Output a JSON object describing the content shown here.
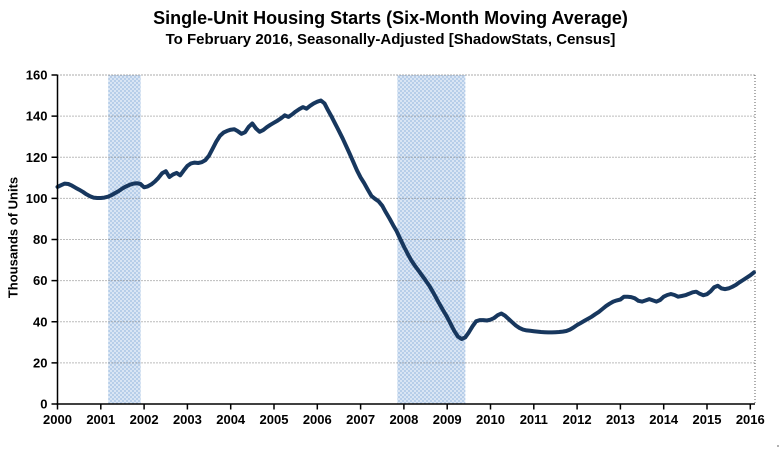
{
  "header": {
    "title": "Single-Unit Housing Starts (Six-Month Moving Average)",
    "subtitle": "To February 2016, Seasonally-Adjusted [ShadowStats, Census]"
  },
  "y_axis": {
    "label": "Thousands of Units",
    "min": 0,
    "max": 160,
    "ticks": [
      0,
      20,
      40,
      60,
      80,
      100,
      120,
      140,
      160
    ]
  },
  "x_axis": {
    "ticks": [
      2000,
      2001,
      2002,
      2003,
      2004,
      2005,
      2006,
      2007,
      2008,
      2009,
      2010,
      2011,
      2012,
      2013,
      2014,
      2015,
      2016
    ]
  },
  "colors": {
    "line": "#17375E",
    "band": "#B7CEE9",
    "grid": "#787878",
    "axis": "#000000",
    "background": "#FFFFFF"
  },
  "chart_data": {
    "type": "line",
    "title": "Single-Unit Housing Starts (Six-Month Moving Average)",
    "subtitle": "To February 2016, Seasonally-Adjusted [ShadowStats, Census]",
    "xlabel": "",
    "ylabel": "Thousands of Units",
    "ylim": [
      0,
      160
    ],
    "xlim": [
      2000,
      2016.17
    ],
    "grid": true,
    "legend_position": "none",
    "recession_bands": [
      {
        "start": 2001.17,
        "end": 2001.92
      },
      {
        "start": 2007.85,
        "end": 2009.42
      }
    ],
    "series": [
      {
        "name": "Single-Unit Housing Starts, 6-month moving average",
        "color": "#17375E",
        "start_month": "2000-01",
        "end_month": "2016-02",
        "values": [
          105.6,
          106.4,
          107.2,
          107.0,
          106.2,
          105.2,
          104.2,
          103.2,
          102.0,
          101.0,
          100.4,
          100.2,
          100.2,
          100.4,
          100.8,
          101.6,
          102.6,
          103.6,
          104.8,
          105.8,
          106.6,
          107.2,
          107.4,
          107.0,
          105.4,
          105.8,
          106.8,
          108.2,
          110.0,
          112.2,
          113.2,
          110.4,
          111.6,
          112.4,
          111.2,
          113.6,
          115.8,
          117.0,
          117.4,
          117.2,
          117.6,
          118.6,
          120.8,
          124.2,
          127.6,
          130.4,
          132.0,
          132.8,
          133.4,
          133.6,
          132.6,
          131.4,
          132.2,
          134.8,
          136.4,
          134.0,
          132.4,
          133.2,
          134.6,
          135.8,
          136.8,
          137.8,
          139.0,
          140.4,
          139.6,
          140.8,
          142.2,
          143.4,
          144.4,
          143.6,
          145.0,
          146.2,
          147.0,
          147.6,
          146.2,
          142.8,
          139.6,
          136.2,
          132.8,
          129.2,
          125.4,
          121.6,
          117.6,
          113.6,
          110.2,
          107.4,
          104.2,
          101.2,
          99.8,
          98.6,
          96.4,
          93.2,
          90.2,
          87.0,
          84.0,
          80.2,
          76.6,
          73.2,
          70.0,
          67.4,
          65.0,
          62.6,
          60.2,
          57.6,
          54.6,
          51.4,
          48.2,
          45.2,
          42.2,
          38.8,
          35.4,
          32.8,
          31.6,
          32.4,
          34.8,
          37.8,
          40.2,
          40.8,
          40.8,
          40.6,
          41.0,
          41.8,
          43.2,
          44.0,
          43.0,
          41.4,
          39.8,
          38.2,
          37.0,
          36.2,
          35.8,
          35.6,
          35.4,
          35.2,
          35.0,
          34.9,
          34.8,
          34.8,
          34.9,
          35.0,
          35.2,
          35.5,
          36.2,
          37.2,
          38.4,
          39.4,
          40.4,
          41.4,
          42.4,
          43.6,
          44.8,
          46.2,
          47.6,
          48.8,
          49.8,
          50.4,
          50.8,
          52.2,
          52.2,
          52.0,
          51.4,
          50.2,
          49.8,
          50.4,
          51.0,
          50.4,
          49.8,
          50.6,
          52.2,
          53.0,
          53.5,
          53.0,
          52.2,
          52.5,
          52.9,
          53.6,
          54.3,
          54.6,
          53.6,
          52.9,
          53.4,
          54.8,
          56.8,
          57.5,
          56.2,
          55.9,
          56.2,
          57.0,
          57.9,
          59.2,
          60.3,
          61.4,
          62.6,
          64.0
        ]
      }
    ]
  }
}
